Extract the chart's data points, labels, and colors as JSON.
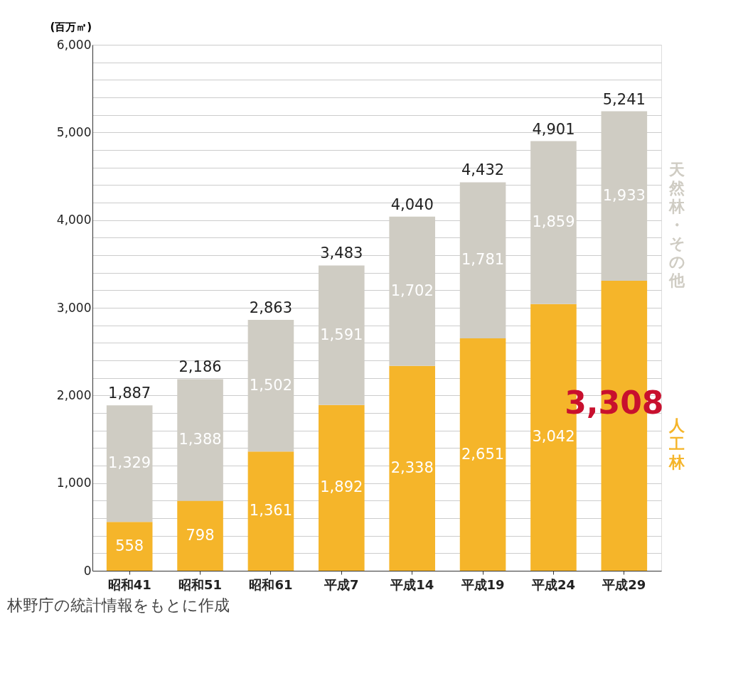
{
  "chart_data": {
    "type": "bar",
    "stacked": true,
    "ylabel": "(百万㎥)",
    "categories": [
      "昭和41",
      "昭和51",
      "昭和61",
      "平成7",
      "平成14",
      "平成19",
      "平成24",
      "平成29"
    ],
    "series": [
      {
        "name": "人工林",
        "color": "#f5b52a",
        "values": [
          558,
          798,
          1361,
          1892,
          2338,
          2651,
          3042,
          3308
        ],
        "value_labels": [
          "558",
          "798",
          "1,361",
          "1,892",
          "2,338",
          "2,651",
          "3,042",
          "3,308"
        ]
      },
      {
        "name": "天然林・その他",
        "color": "#cfccc3",
        "values": [
          1329,
          1388,
          1502,
          1591,
          1702,
          1781,
          1859,
          1933
        ],
        "value_labels": [
          "1,329",
          "1,388",
          "1,502",
          "1,591",
          "1,702",
          "1,781",
          "1,859",
          "1,933"
        ]
      }
    ],
    "totals": [
      "1,887",
      "2,186",
      "2,863",
      "3,483",
      "4,040",
      "4,432",
      "4,901",
      "5,241"
    ],
    "ylim": [
      0,
      6000
    ],
    "yticks": [
      0,
      {
        "value": 200,
        "label": null
      },
      {
        "value": 400,
        "label": null
      },
      {
        "value": 600,
        "label": null
      },
      {
        "value": 800,
        "label": null
      },
      {
        "value": 1000,
        "label": "1,000"
      },
      {
        "value": 1200,
        "label": null
      },
      {
        "value": 1400,
        "label": null
      },
      {
        "value": 1600,
        "label": null
      },
      {
        "value": 1800,
        "label": null
      },
      {
        "value": 2000,
        "label": "2,000"
      },
      {
        "value": 2200,
        "label": null
      },
      {
        "value": 2400,
        "label": null
      },
      {
        "value": 2600,
        "label": null
      },
      {
        "value": 2800,
        "label": null
      },
      {
        "value": 3000,
        "label": "3,000"
      },
      {
        "value": 3200,
        "label": null
      },
      {
        "value": 3400,
        "label": null
      },
      {
        "value": 3600,
        "label": null
      },
      {
        "value": 3800,
        "label": null
      },
      {
        "value": 4000,
        "label": "4,000"
      },
      {
        "value": 4200,
        "label": null
      },
      {
        "value": 4400,
        "label": null
      },
      {
        "value": 4600,
        "label": null
      },
      {
        "value": 4800,
        "label": null
      },
      {
        "value": 5000,
        "label": "5,000"
      },
      {
        "value": 5200,
        "label": null
      },
      {
        "value": 5400,
        "label": null
      },
      {
        "value": 5600,
        "label": null
      },
      {
        "value": 5800,
        "label": null
      },
      {
        "value": 6000,
        "label": "6,000"
      }
    ],
    "grid": "y",
    "annotations": [
      "林野庁の統計情報をもとに作成"
    ]
  }
}
